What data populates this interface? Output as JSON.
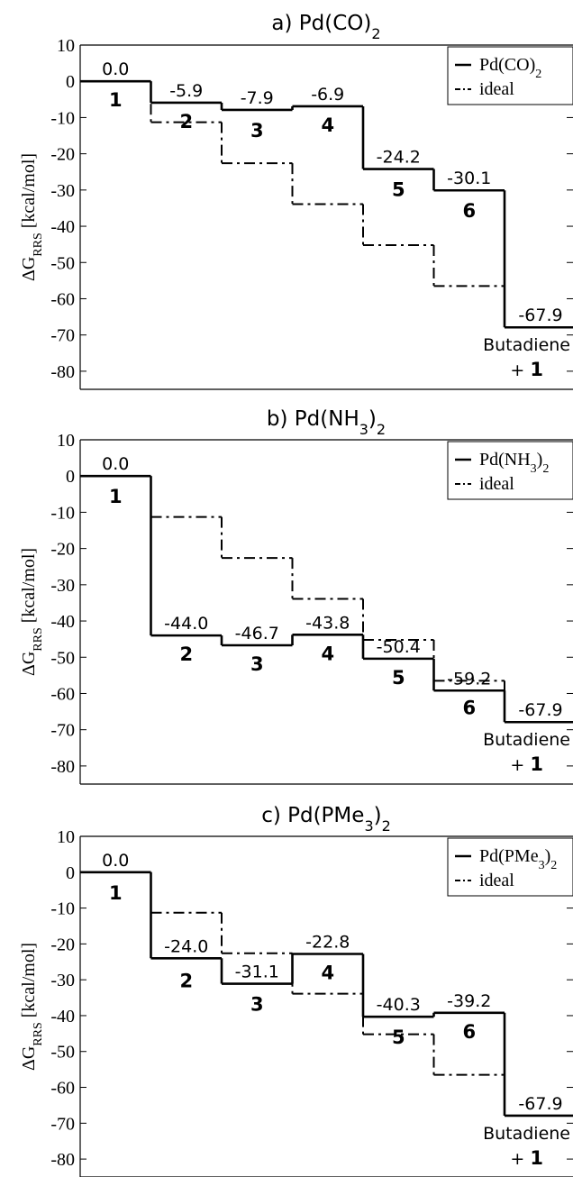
{
  "chart_data": [
    {
      "type": "line",
      "title": "a) Pd(CO)",
      "title_sub": "2",
      "ylabel_main": "ΔG",
      "ylabel_sub": "RRS",
      "ylabel_unit": "[kcal/mol]",
      "ylim": [
        -85,
        10
      ],
      "yticks": [
        "10",
        "0",
        "-10",
        "-20",
        "-30",
        "-40",
        "-50",
        "-60",
        "-70",
        "-80"
      ],
      "legend": {
        "position": "top-right",
        "series_main": "Pd(CO)",
        "series_sub": "2",
        "ideal": "ideal"
      },
      "series": [
        {
          "name": "Pd(CO)2",
          "style": "solid",
          "values": [
            0.0,
            -5.9,
            -7.9,
            -6.9,
            -24.2,
            -30.1,
            -67.9
          ]
        },
        {
          "name": "ideal",
          "style": "dashdot",
          "values": [
            0.0,
            -11.3,
            -22.6,
            -33.9,
            -45.2,
            -56.5,
            -67.9
          ]
        }
      ],
      "energy_labels": [
        "0.0",
        "-5.9",
        "-7.9",
        "-6.9",
        "-24.2",
        "-30.1",
        "-67.9"
      ],
      "state_labels": [
        "1",
        "2",
        "3",
        "4",
        "5",
        "6"
      ],
      "final_label_1": "Butadiene",
      "final_label_2a": "+ ",
      "final_label_2b": "1"
    },
    {
      "type": "line",
      "title": "b) Pd(NH",
      "title_sub": "3",
      "title_close": ")",
      "title_sub2": "2",
      "ylabel_main": "ΔG",
      "ylabel_sub": "RRS",
      "ylabel_unit": "[kcal/mol]",
      "ylim": [
        -85,
        10
      ],
      "yticks": [
        "10",
        "0",
        "-10",
        "-20",
        "-30",
        "-40",
        "-50",
        "-60",
        "-70",
        "-80"
      ],
      "legend": {
        "position": "top-right",
        "series_main": "Pd(NH",
        "series_sub": "3",
        "series_close": ")",
        "series_sub2": "2",
        "ideal": "ideal"
      },
      "series": [
        {
          "name": "Pd(NH3)2",
          "style": "solid",
          "values": [
            0.0,
            -44.0,
            -46.7,
            -43.8,
            -50.4,
            -59.2,
            -67.9
          ]
        },
        {
          "name": "ideal",
          "style": "dashdot",
          "values": [
            0.0,
            -11.3,
            -22.6,
            -33.9,
            -45.2,
            -56.5,
            -67.9
          ]
        }
      ],
      "energy_labels": [
        "0.0",
        "-44.0",
        "-46.7",
        "-43.8",
        "-50.4",
        "-59.2",
        "-67.9"
      ],
      "state_labels": [
        "1",
        "2",
        "3",
        "4",
        "5",
        "6"
      ],
      "final_label_1": "Butadiene",
      "final_label_2a": "+ ",
      "final_label_2b": "1"
    },
    {
      "type": "line",
      "title": "c) Pd(PMe",
      "title_sub": "3",
      "title_close": ")",
      "title_sub2": "2",
      "ylabel_main": "ΔG",
      "ylabel_sub": "RRS",
      "ylabel_unit": "[kcal/mol]",
      "ylim": [
        -85,
        10
      ],
      "yticks": [
        "10",
        "0",
        "-10",
        "-20",
        "-30",
        "-40",
        "-50",
        "-60",
        "-70",
        "-80"
      ],
      "legend": {
        "position": "top-right",
        "series_main": "Pd(PMe",
        "series_sub": "3",
        "series_close": ")",
        "series_sub2": "2",
        "ideal": "ideal"
      },
      "series": [
        {
          "name": "Pd(PMe3)2",
          "style": "solid",
          "values": [
            0.0,
            -24.0,
            -31.1,
            -22.8,
            -40.3,
            -39.2,
            -67.9
          ]
        },
        {
          "name": "ideal",
          "style": "dashdot",
          "values": [
            0.0,
            -11.3,
            -22.6,
            -33.9,
            -45.2,
            -56.5,
            -67.9
          ]
        }
      ],
      "energy_labels": [
        "0.0",
        "-24.0",
        "-31.1",
        "-22.8",
        "-40.3",
        "-39.2",
        "-67.9"
      ],
      "state_labels": [
        "1",
        "2",
        "3",
        "4",
        "5",
        "6"
      ],
      "final_label_1": "Butadiene",
      "final_label_2a": "+ ",
      "final_label_2b": "1"
    }
  ]
}
